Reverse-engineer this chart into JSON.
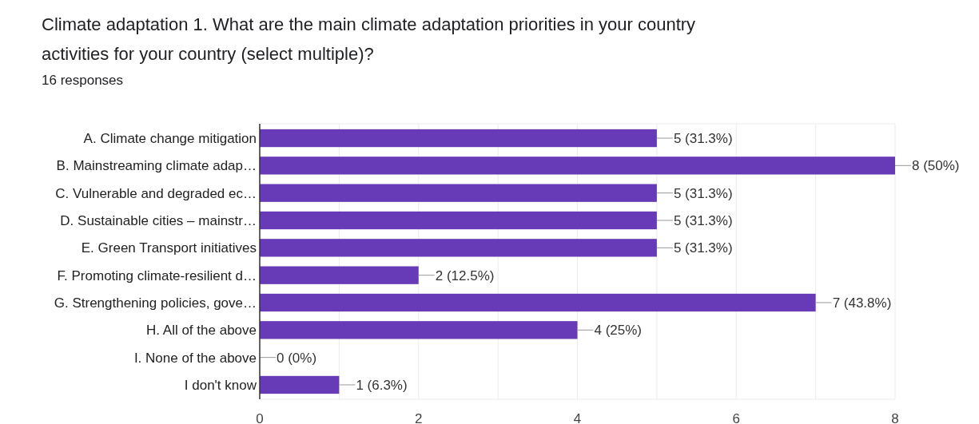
{
  "chart_data": {
    "type": "bar",
    "orientation": "horizontal",
    "title": "Climate adaptation  1. What are the main climate adaptation priorities in your country activities for your country (select multiple)?",
    "subtitle": "16 responses",
    "categories": [
      "A. Climate change mitigation",
      "B. Mainstreaming climate adap…",
      "C. Vulnerable and degraded ec…",
      "D. Sustainable cities – mainstr…",
      "E. Green Transport initiatives",
      "F. Promoting climate-resilient d…",
      "G. Strengthening policies, gove…",
      "H. All of the above",
      "I. None of the above",
      "I don't know"
    ],
    "values": [
      5,
      8,
      5,
      5,
      5,
      2,
      7,
      4,
      0,
      1
    ],
    "value_labels": [
      "5 (31.3%)",
      "8 (50%)",
      "5 (31.3%)",
      "5 (31.3%)",
      "5 (31.3%)",
      "2 (12.5%)",
      "7 (43.8%)",
      "4 (25%)",
      "0 (0%)",
      "1 (6.3%)"
    ],
    "color": "#673ab7",
    "xlim": [
      0,
      8
    ],
    "xticks": [
      0,
      {
        "value": 1,
        "label": null
      },
      2,
      {
        "value": 3,
        "label": null
      },
      4,
      {
        "value": 5,
        "label": null
      },
      6,
      {
        "value": 7,
        "label": null
      },
      8
    ],
    "grid": true
  }
}
